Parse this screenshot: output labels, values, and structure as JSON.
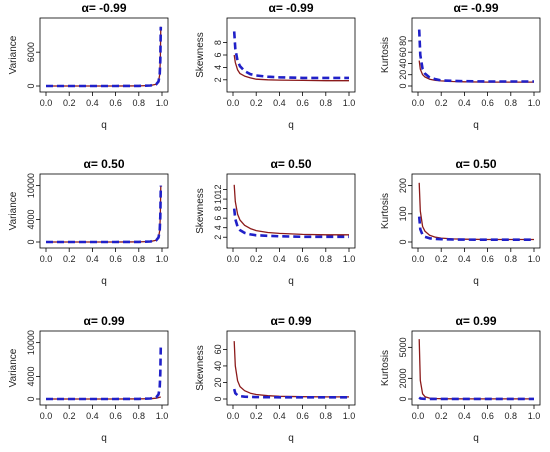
{
  "chart_data": [
    {
      "type": "line",
      "title": "α= -0.99",
      "xlabel": "q",
      "ylabel": "Variance",
      "xlim": [
        0,
        1
      ],
      "ylim": [
        0,
        11000
      ],
      "xticks": [
        "0.0",
        "0.2",
        "0.4",
        "0.6",
        "0.8",
        "1.0"
      ],
      "yticks": [
        0,
        6000
      ],
      "series": [
        {
          "style": "solid",
          "color": "#8b1a1a",
          "x": [
            0.0,
            0.2,
            0.4,
            0.6,
            0.8,
            0.9,
            0.95,
            0.97,
            0.98,
            0.985,
            0.99
          ],
          "y": [
            0,
            0,
            0,
            0,
            20,
            80,
            300,
            800,
            2000,
            4500,
            10500
          ]
        },
        {
          "style": "dashed",
          "color": "#2020c8",
          "x": [
            0.0,
            0.2,
            0.4,
            0.6,
            0.8,
            0.9,
            0.95,
            0.97,
            0.98,
            0.985,
            0.99
          ],
          "y": [
            0,
            0,
            0,
            0,
            20,
            80,
            300,
            800,
            2000,
            4500,
            10500
          ]
        }
      ]
    },
    {
      "type": "line",
      "title": "α= -0.99",
      "xlabel": "q",
      "ylabel": "Skewness",
      "xlim": [
        0,
        1
      ],
      "ylim": [
        1,
        11
      ],
      "xticks": [
        "0.0",
        "0.2",
        "0.4",
        "0.6",
        "0.8",
        "1.0"
      ],
      "yticks": [
        2,
        4,
        6,
        8
      ],
      "series": [
        {
          "style": "solid",
          "color": "#8b1a1a",
          "x": [
            0.01,
            0.02,
            0.04,
            0.06,
            0.1,
            0.15,
            0.2,
            0.3,
            0.4,
            0.6,
            0.8,
            1.0
          ],
          "y": [
            6.0,
            4.8,
            3.6,
            3.0,
            2.6,
            2.3,
            2.1,
            2.0,
            1.95,
            1.9,
            1.85,
            1.85
          ]
        },
        {
          "style": "dashed",
          "color": "#2020c8",
          "x": [
            0.01,
            0.02,
            0.04,
            0.06,
            0.1,
            0.15,
            0.2,
            0.3,
            0.4,
            0.6,
            0.8,
            1.0
          ],
          "y": [
            9.8,
            7.0,
            5.0,
            4.2,
            3.4,
            2.9,
            2.7,
            2.5,
            2.4,
            2.3,
            2.3,
            2.3
          ]
        }
      ]
    },
    {
      "type": "line",
      "title": "α= -0.99",
      "xlabel": "q",
      "ylabel": "Kurtosis",
      "xlim": [
        0,
        1
      ],
      "ylim": [
        0,
        110
      ],
      "xticks": [
        "0.0",
        "0.2",
        "0.4",
        "0.6",
        "0.8",
        "1.0"
      ],
      "yticks": [
        0,
        20,
        40,
        60,
        80
      ],
      "series": [
        {
          "style": "solid",
          "color": "#8b1a1a",
          "x": [
            0.01,
            0.02,
            0.04,
            0.06,
            0.1,
            0.15,
            0.2,
            0.3,
            0.4,
            0.6,
            0.8,
            1.0
          ],
          "y": [
            45,
            30,
            20,
            16,
            12,
            10,
            9,
            8,
            7.5,
            7,
            7,
            7
          ]
        },
        {
          "style": "dashed",
          "color": "#2020c8",
          "x": [
            0.01,
            0.02,
            0.04,
            0.06,
            0.1,
            0.15,
            0.2,
            0.3,
            0.4,
            0.6,
            0.8,
            1.0
          ],
          "y": [
            100,
            55,
            30,
            22,
            15,
            12,
            10,
            9,
            8.5,
            8,
            8,
            8
          ]
        }
      ]
    },
    {
      "type": "line",
      "title": "α= 0.50",
      "xlabel": "q",
      "ylabel": "Variance",
      "xlim": [
        0,
        1
      ],
      "ylim": [
        0,
        11000
      ],
      "xticks": [
        "0.0",
        "0.2",
        "0.4",
        "0.6",
        "0.8",
        "1.0"
      ],
      "yticks": [
        0,
        4000,
        10000
      ],
      "series": [
        {
          "style": "solid",
          "color": "#8b1a1a",
          "x": [
            0.0,
            0.2,
            0.4,
            0.6,
            0.8,
            0.9,
            0.95,
            0.97,
            0.98,
            0.985,
            0.99
          ],
          "y": [
            0,
            0,
            0,
            0,
            20,
            80,
            300,
            800,
            2000,
            4500,
            10000
          ]
        },
        {
          "style": "dashed",
          "color": "#2020c8",
          "x": [
            0.0,
            0.2,
            0.4,
            0.6,
            0.8,
            0.9,
            0.95,
            0.97,
            0.98,
            0.985,
            0.99
          ],
          "y": [
            0,
            0,
            0,
            0,
            20,
            80,
            300,
            800,
            2000,
            4500,
            10000
          ]
        }
      ]
    },
    {
      "type": "line",
      "title": "α= 0.50",
      "xlabel": "q",
      "ylabel": "Skewness",
      "xlim": [
        0,
        1
      ],
      "ylim": [
        1,
        14
      ],
      "xticks": [
        "0.0",
        "0.2",
        "0.4",
        "0.6",
        "0.8",
        "1.0"
      ],
      "yticks": [
        2,
        4,
        6,
        8,
        10,
        12
      ],
      "series": [
        {
          "style": "solid",
          "color": "#8b1a1a",
          "x": [
            0.01,
            0.02,
            0.04,
            0.06,
            0.1,
            0.15,
            0.2,
            0.3,
            0.4,
            0.6,
            0.8,
            1.0
          ],
          "y": [
            13.0,
            9.5,
            6.8,
            5.6,
            4.5,
            3.8,
            3.4,
            3.0,
            2.8,
            2.6,
            2.5,
            2.5
          ]
        },
        {
          "style": "dashed",
          "color": "#2020c8",
          "x": [
            0.01,
            0.02,
            0.04,
            0.06,
            0.1,
            0.15,
            0.2,
            0.3,
            0.4,
            0.6,
            0.8,
            1.0
          ],
          "y": [
            8.0,
            5.8,
            4.2,
            3.5,
            2.9,
            2.6,
            2.4,
            2.3,
            2.2,
            2.1,
            2.1,
            2.1
          ]
        }
      ]
    },
    {
      "type": "line",
      "title": "α= 0.50",
      "xlabel": "q",
      "ylabel": "Kurtosis",
      "xlim": [
        0,
        1
      ],
      "ylim": [
        0,
        220
      ],
      "xticks": [
        "0.0",
        "0.2",
        "0.4",
        "0.6",
        "0.8",
        "1.0"
      ],
      "yticks": [
        0,
        100,
        200
      ],
      "series": [
        {
          "style": "solid",
          "color": "#8b1a1a",
          "x": [
            0.01,
            0.02,
            0.04,
            0.06,
            0.1,
            0.15,
            0.2,
            0.3,
            0.4,
            0.6,
            0.8,
            1.0
          ],
          "y": [
            210,
            110,
            55,
            38,
            24,
            17,
            14,
            11,
            10,
            9,
            9,
            9
          ]
        },
        {
          "style": "dashed",
          "color": "#2020c8",
          "x": [
            0.01,
            0.02,
            0.04,
            0.06,
            0.1,
            0.15,
            0.2,
            0.3,
            0.4,
            0.6,
            0.8,
            1.0
          ],
          "y": [
            90,
            45,
            25,
            18,
            13,
            11,
            10,
            9,
            8.5,
            8,
            8,
            8
          ]
        }
      ]
    },
    {
      "type": "line",
      "title": "α= 0.99",
      "xlabel": "q",
      "ylabel": "Variance",
      "xlim": [
        0,
        1
      ],
      "ylim": [
        0,
        11000
      ],
      "xticks": [
        "0.0",
        "0.2",
        "0.4",
        "0.6",
        "0.8",
        "1.0"
      ],
      "yticks": [
        0,
        4000,
        10000
      ],
      "series": [
        {
          "style": "solid",
          "color": "#8b1a1a",
          "x": [
            0.0,
            0.2,
            0.4,
            0.6,
            0.8,
            0.9,
            0.95,
            0.97,
            0.98,
            0.99
          ],
          "y": [
            0,
            0,
            0,
            0,
            20,
            60,
            150,
            250,
            300,
            350
          ]
        },
        {
          "style": "dashed",
          "color": "#2020c8",
          "x": [
            0.0,
            0.2,
            0.4,
            0.6,
            0.8,
            0.9,
            0.95,
            0.97,
            0.98,
            0.985,
            0.99
          ],
          "y": [
            0,
            0,
            0,
            0,
            20,
            80,
            300,
            800,
            2000,
            4500,
            9500
          ]
        }
      ]
    },
    {
      "type": "line",
      "title": "α= 0.99",
      "xlabel": "q",
      "ylabel": "Skewness",
      "xlim": [
        0,
        1
      ],
      "ylim": [
        0,
        75
      ],
      "xticks": [
        "0.0",
        "0.2",
        "0.4",
        "0.6",
        "0.8",
        "1.0"
      ],
      "yticks": [
        0,
        20,
        40,
        60
      ],
      "series": [
        {
          "style": "solid",
          "color": "#8b1a1a",
          "x": [
            0.01,
            0.02,
            0.04,
            0.06,
            0.1,
            0.15,
            0.2,
            0.3,
            0.4,
            0.6,
            0.8,
            1.0
          ],
          "y": [
            70,
            40,
            22,
            15,
            10,
            7,
            5.5,
            4,
            3.3,
            2.8,
            2.5,
            2.5
          ]
        },
        {
          "style": "dashed",
          "color": "#2020c8",
          "x": [
            0.01,
            0.02,
            0.04,
            0.06,
            0.1,
            0.15,
            0.2,
            0.3,
            0.4,
            0.6,
            0.8,
            1.0
          ],
          "y": [
            12,
            7,
            4.5,
            3.5,
            2.8,
            2.5,
            2.3,
            2.2,
            2.1,
            2.0,
            2.0,
            2.0
          ]
        }
      ]
    },
    {
      "type": "line",
      "title": "α= 0.99",
      "xlabel": "q",
      "ylabel": "Kurtosis",
      "xlim": [
        0,
        1
      ],
      "ylim": [
        0,
        6000
      ],
      "xticks": [
        "0.0",
        "0.2",
        "0.4",
        "0.6",
        "0.8",
        "1.0"
      ],
      "yticks": [
        0,
        2000,
        5000
      ],
      "series": [
        {
          "style": "solid",
          "color": "#8b1a1a",
          "x": [
            0.01,
            0.02,
            0.04,
            0.06,
            0.1,
            0.15,
            0.2,
            0.3,
            0.4,
            0.6,
            0.8,
            1.0
          ],
          "y": [
            5800,
            1800,
            500,
            220,
            90,
            45,
            30,
            18,
            14,
            11,
            10,
            10
          ]
        },
        {
          "style": "dashed",
          "color": "#2020c8",
          "x": [
            0.01,
            0.02,
            0.04,
            0.06,
            0.1,
            0.15,
            0.2,
            0.3,
            0.4,
            0.6,
            0.8,
            1.0
          ],
          "y": [
            150,
            60,
            25,
            16,
            11,
            9,
            8.5,
            8,
            8,
            8,
            8,
            8
          ]
        }
      ]
    }
  ]
}
